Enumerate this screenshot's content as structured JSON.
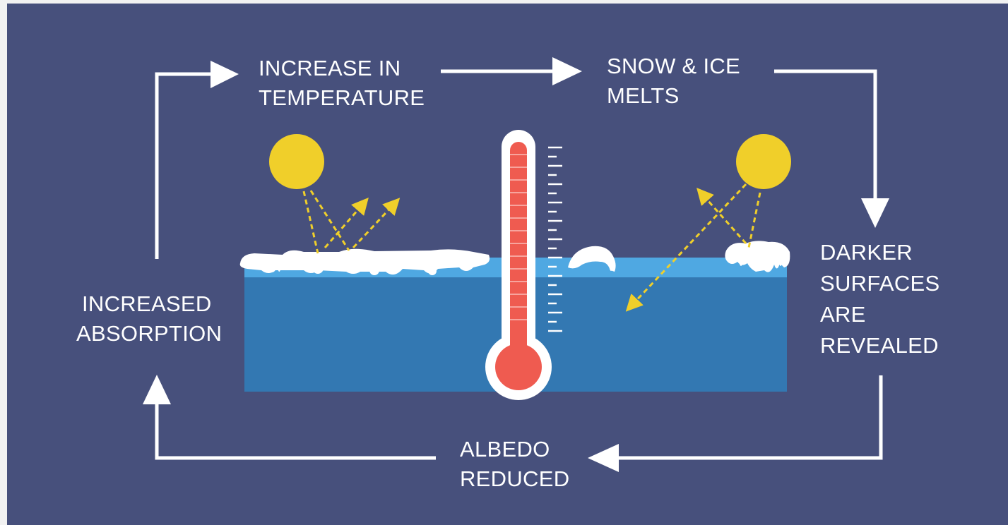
{
  "diagram": {
    "steps": [
      {
        "id": "increase-temperature",
        "lines": [
          "INCREASE IN",
          "TEMPERATURE"
        ]
      },
      {
        "id": "snow-ice-melts",
        "lines": [
          "SNOW & ICE",
          "MELTS"
        ]
      },
      {
        "id": "darker-surfaces",
        "lines": [
          "DARKER",
          "SURFACES",
          "ARE",
          "REVEALED"
        ]
      },
      {
        "id": "albedo-reduced",
        "lines": [
          "ALBEDO",
          "REDUCED"
        ]
      },
      {
        "id": "increased-absorption",
        "lines": [
          "INCREASED",
          "ABSORPTION"
        ]
      }
    ],
    "flow": "clockwise loop",
    "illustration": {
      "left": "sun over snow-covered ice, rays reflected",
      "center": "thermometer",
      "right": "sun over melted ice, rays absorbed by water"
    }
  },
  "colors": {
    "background": "#47507c",
    "arrow": "#ffffff",
    "sun": "#f0cf2a",
    "ray": "#f0cf2a",
    "water_top": "#4fa8e2",
    "water_body": "#3378b2",
    "snow": "#ffffff",
    "thermometer_red": "#ef5b50"
  }
}
